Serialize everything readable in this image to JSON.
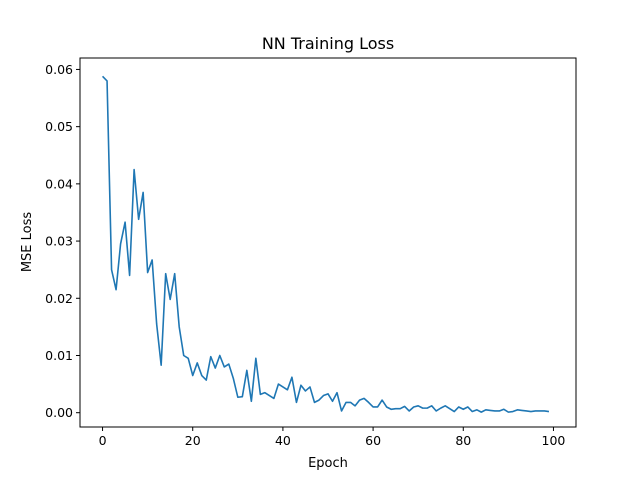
{
  "chart_data": {
    "type": "line",
    "title": "NN Training Loss",
    "xlabel": "Epoch",
    "ylabel": "MSE Loss",
    "xlim": [
      -5,
      105
    ],
    "ylim": [
      -0.0025,
      0.062
    ],
    "grid": false,
    "x_ticks": [
      {
        "value": 0,
        "label": "0"
      },
      {
        "value": 20,
        "label": "20"
      },
      {
        "value": 40,
        "label": "40"
      },
      {
        "value": 60,
        "label": "60"
      },
      {
        "value": 80,
        "label": "80"
      },
      {
        "value": 100,
        "label": "100"
      }
    ],
    "y_ticks": [
      {
        "value": 0.0,
        "label": "0.00"
      },
      {
        "value": 0.01,
        "label": "0.01"
      },
      {
        "value": 0.02,
        "label": "0.02"
      },
      {
        "value": 0.03,
        "label": "0.03"
      },
      {
        "value": 0.04,
        "label": "0.04"
      },
      {
        "value": 0.05,
        "label": "0.05"
      },
      {
        "value": 0.06,
        "label": "0.06"
      }
    ],
    "series": [
      {
        "color": "#1f77b4",
        "x": [
          0,
          1,
          2,
          3,
          4,
          5,
          6,
          7,
          8,
          9,
          10,
          11,
          12,
          13,
          14,
          15,
          16,
          17,
          18,
          19,
          20,
          21,
          22,
          23,
          24,
          25,
          26,
          27,
          28,
          29,
          30,
          31,
          32,
          33,
          34,
          35,
          36,
          37,
          38,
          39,
          40,
          41,
          42,
          43,
          44,
          45,
          46,
          47,
          48,
          49,
          50,
          51,
          52,
          53,
          54,
          55,
          56,
          57,
          58,
          59,
          60,
          61,
          62,
          63,
          64,
          65,
          66,
          67,
          68,
          69,
          70,
          71,
          72,
          73,
          74,
          75,
          76,
          77,
          78,
          79,
          80,
          81,
          82,
          83,
          84,
          85,
          86,
          87,
          88,
          89,
          90,
          91,
          92,
          93,
          94,
          95,
          96,
          97,
          98,
          99
        ],
        "y": [
          0.0588,
          0.058,
          0.025,
          0.0215,
          0.0295,
          0.0333,
          0.024,
          0.0425,
          0.0338,
          0.0385,
          0.0245,
          0.0267,
          0.0155,
          0.0083,
          0.0243,
          0.0198,
          0.0243,
          0.015,
          0.01,
          0.0095,
          0.0065,
          0.0087,
          0.0065,
          0.0057,
          0.0098,
          0.0078,
          0.01,
          0.008,
          0.0085,
          0.006,
          0.0027,
          0.0028,
          0.0074,
          0.002,
          0.0095,
          0.0032,
          0.0035,
          0.003,
          0.0025,
          0.005,
          0.0045,
          0.004,
          0.0062,
          0.0018,
          0.0048,
          0.0038,
          0.0045,
          0.0018,
          0.0022,
          0.003,
          0.0033,
          0.002,
          0.0035,
          0.0003,
          0.0018,
          0.0018,
          0.0012,
          0.0022,
          0.0025,
          0.0018,
          0.001,
          0.001,
          0.0022,
          0.001,
          0.0006,
          0.0007,
          0.0007,
          0.0011,
          0.0003,
          0.001,
          0.0012,
          0.0008,
          0.0008,
          0.0012,
          0.0003,
          0.0008,
          0.0012,
          0.0007,
          0.0002,
          0.001,
          0.0006,
          0.001,
          0.0002,
          0.0005,
          0.0001,
          0.0005,
          0.0004,
          0.0003,
          0.0003,
          0.0006,
          0.0001,
          0.0002,
          0.0005,
          0.0004,
          0.0003,
          0.0002,
          0.0003,
          0.0003,
          0.0003,
          0.0002
        ]
      }
    ]
  }
}
